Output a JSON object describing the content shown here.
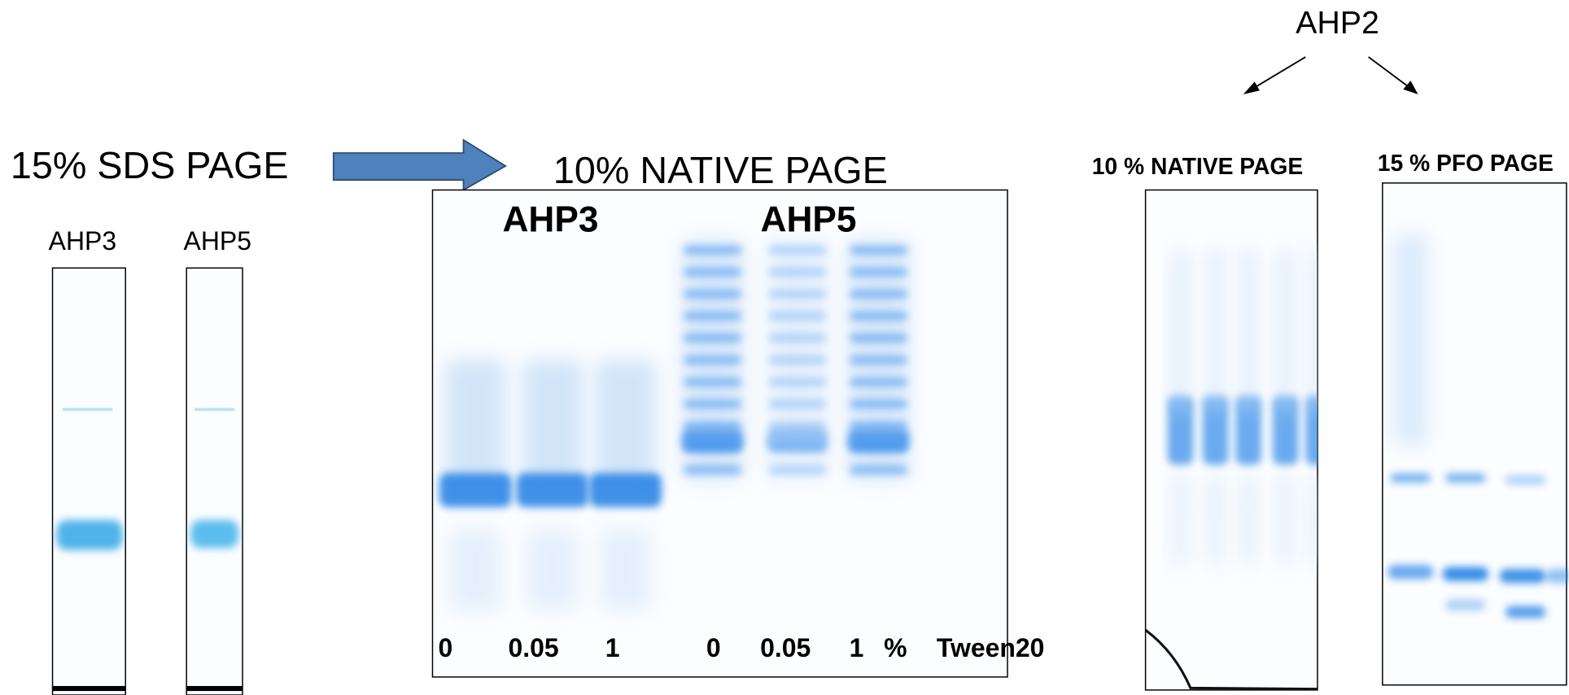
{
  "sds_panel": {
    "title": "15% SDS PAGE",
    "lanes": [
      "AHP3",
      "AHP5"
    ]
  },
  "native_panel": {
    "title": "10% NATIVE PAGE",
    "groups": [
      "AHP3",
      "AHP5"
    ],
    "concentrations": [
      "0",
      "0.05",
      "1",
      "0",
      "0.05",
      "1"
    ],
    "unit": "%",
    "detergent": "Tween20"
  },
  "ahp2_panel": {
    "label": "AHP2",
    "native_title": "10 % NATIVE PAGE",
    "pfo_title": "15 % PFO PAGE"
  }
}
